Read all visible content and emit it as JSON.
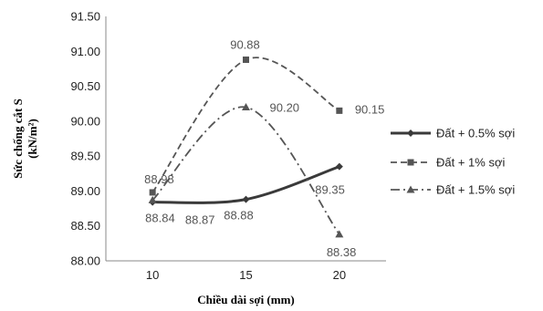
{
  "chart_data": {
    "type": "line",
    "xlabel": "Chiều dài sợi (mm)",
    "ylabel_line1": "Sức chống cắt S",
    "ylabel_line2": "(kN/m²)",
    "x": [
      10,
      15,
      20
    ],
    "ylim": [
      88.0,
      91.5
    ],
    "yticks": [
      "88.00",
      "88.50",
      "89.00",
      "89.50",
      "90.00",
      "90.50",
      "91.00",
      "91.50"
    ],
    "grid": false,
    "legend_position": "right",
    "smoothed": true,
    "series": [
      {
        "name": "Đất + 0.5% sợi",
        "values": [
          88.84,
          88.88,
          89.35
        ],
        "labels": [
          "88.84",
          "88.88",
          "89.35"
        ],
        "color": "#3a3a3a",
        "dash": "solid",
        "marker": "diamond"
      },
      {
        "name": "Đất + 1% sợi",
        "values": [
          88.98,
          90.88,
          90.15
        ],
        "labels": [
          "88.98",
          "90.88",
          "90.15"
        ],
        "color": "#555555",
        "dash": "dashed",
        "marker": "square"
      },
      {
        "name": "Đất + 1.5% sợi",
        "values": [
          88.87,
          90.2,
          88.38
        ],
        "labels": [
          "88.87",
          "90.20",
          "88.38"
        ],
        "color": "#555555",
        "dash": "dashdot",
        "marker": "triangle"
      }
    ]
  }
}
